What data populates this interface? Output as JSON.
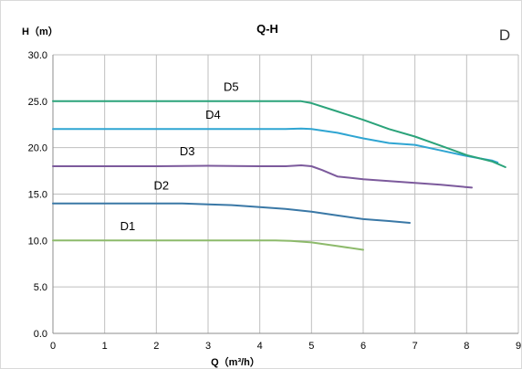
{
  "chart_data": {
    "type": "line",
    "title": "Q-H",
    "corner_label": "D",
    "xlabel": "Q（m³/h）",
    "ylabel": "H（m）",
    "xlim": [
      0,
      9
    ],
    "ylim": [
      0,
      30
    ],
    "xticks": [
      "0",
      "1",
      "2",
      "3",
      "4",
      "5",
      "6",
      "7",
      "8",
      "9"
    ],
    "yticks": [
      "0.0",
      "5.0",
      "10.0",
      "15.0",
      "20.0",
      "25.0",
      "30.0"
    ],
    "grid": true,
    "series": [
      {
        "name": "D1",
        "color": "#8dba6b",
        "label_pos": [
          1.3,
          11.1
        ],
        "x": [
          0,
          1,
          2,
          3,
          4,
          4.3,
          4.6,
          5,
          5.5,
          6
        ],
        "y": [
          10,
          10,
          10,
          10,
          10,
          10.0,
          9.95,
          9.8,
          9.4,
          9.0
        ]
      },
      {
        "name": "D2",
        "color": "#3a78a6",
        "label_pos": [
          1.95,
          15.5
        ],
        "x": [
          0,
          1,
          2,
          2.5,
          3,
          3.5,
          4,
          4.5,
          5,
          5.5,
          6,
          6.5,
          6.9
        ],
        "y": [
          14,
          14,
          14,
          14,
          13.9,
          13.8,
          13.6,
          13.4,
          13.1,
          12.7,
          12.3,
          12.1,
          11.9
        ]
      },
      {
        "name": "D3",
        "color": "#7c5a9c",
        "label_pos": [
          2.45,
          19.2
        ],
        "x": [
          0,
          1,
          2,
          3,
          4,
          4.5,
          4.8,
          5,
          5.2,
          5.5,
          6,
          6.5,
          7,
          7.5,
          8.1
        ],
        "y": [
          18,
          18,
          18,
          18.05,
          18.0,
          18.0,
          18.1,
          18.0,
          17.6,
          16.9,
          16.6,
          16.4,
          16.2,
          16.0,
          15.7
        ]
      },
      {
        "name": "D4",
        "color": "#2fa5d2",
        "label_pos": [
          2.95,
          23.1
        ],
        "x": [
          0,
          1,
          2,
          3,
          4,
          4.5,
          4.8,
          5,
          5.5,
          6,
          6.5,
          7,
          7.5,
          8,
          8.5,
          8.6
        ],
        "y": [
          22,
          22,
          22,
          22,
          22,
          22,
          22.05,
          22.0,
          21.6,
          21.0,
          20.5,
          20.3,
          19.7,
          19.1,
          18.6,
          18.4
        ]
      },
      {
        "name": "D5",
        "color": "#2ba37a",
        "label_pos": [
          3.3,
          26.1
        ],
        "x": [
          0,
          1,
          2,
          3,
          4,
          4.5,
          4.8,
          5,
          5.5,
          6,
          6.5,
          7,
          7.5,
          8,
          8.5,
          8.75
        ],
        "y": [
          25,
          25,
          25,
          25,
          25,
          25,
          25.0,
          24.8,
          23.9,
          23.0,
          22.0,
          21.2,
          20.2,
          19.2,
          18.5,
          17.9
        ]
      }
    ]
  }
}
